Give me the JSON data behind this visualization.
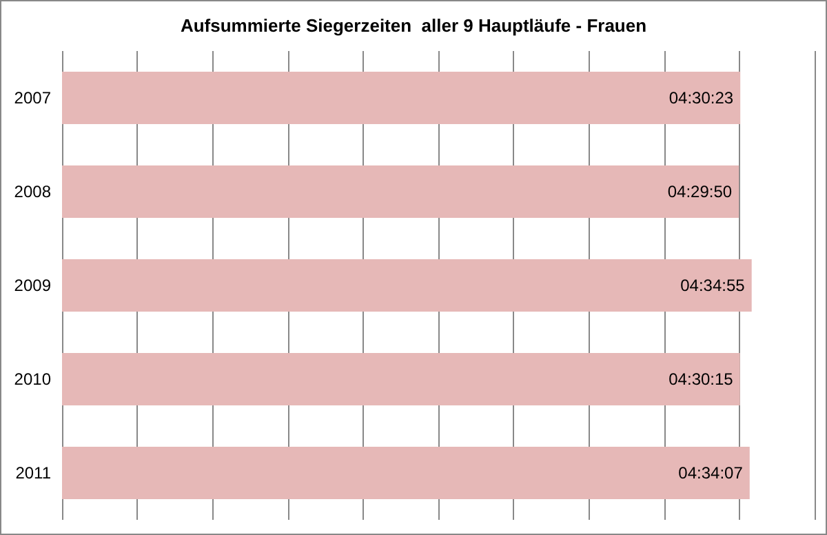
{
  "chart_data": {
    "type": "bar",
    "orientation": "horizontal",
    "title": "Aufsummierte Siegerzeiten  aller 9 Hauptläufe - Frauen",
    "categories": [
      "2007",
      "2008",
      "2009",
      "2010",
      "2011"
    ],
    "values": [
      4.506389,
      4.497222,
      4.581944,
      4.504167,
      4.568611
    ],
    "value_labels": [
      "04:30:23",
      "04:29:50",
      "04:34:55",
      "04:30:15",
      "04:34:07"
    ],
    "color": "#e6b8b7",
    "grid": "x"
  }
}
